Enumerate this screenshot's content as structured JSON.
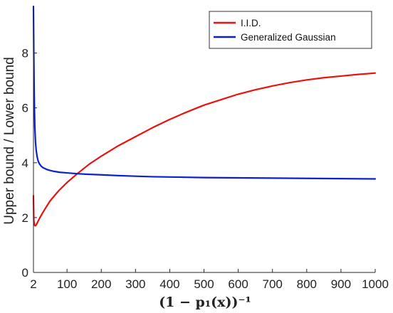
{
  "chart_data": {
    "type": "line",
    "xlabel": "(1 − p₁(x))⁻¹",
    "ylabel": "Upper bound / Lower bound",
    "xlim": [
      2,
      1000
    ],
    "ylim": [
      0,
      9.7
    ],
    "x_ticks": [
      2,
      100,
      200,
      300,
      400,
      500,
      600,
      700,
      800,
      900,
      1000
    ],
    "x_tick_labels": [
      "2",
      "100",
      "200",
      "300",
      "400",
      "500",
      "600",
      "700",
      "800",
      "900",
      "1000"
    ],
    "y_ticks": [
      0,
      2,
      4,
      6,
      8
    ],
    "y_tick_labels": [
      "0",
      "2",
      "4",
      "6",
      "8"
    ],
    "grid": false,
    "legend_position": "top-right",
    "series": [
      {
        "name": "I.I.D.",
        "color": "#e8120f",
        "x": [
          2,
          3,
          5,
          8,
          12,
          16,
          20,
          30,
          50,
          75,
          100,
          130,
          165,
          200,
          250,
          300,
          350,
          400,
          450,
          500,
          550,
          600,
          650,
          700,
          750,
          800,
          850,
          900,
          950,
          1000
        ],
        "y": [
          2.8,
          1.9,
          1.72,
          1.7,
          1.78,
          1.88,
          1.98,
          2.2,
          2.6,
          2.97,
          3.28,
          3.6,
          3.95,
          4.24,
          4.62,
          4.95,
          5.28,
          5.58,
          5.85,
          6.1,
          6.3,
          6.5,
          6.66,
          6.8,
          6.92,
          7.02,
          7.1,
          7.16,
          7.22,
          7.27
        ]
      },
      {
        "name": "Generalized Gaussian",
        "color": "#0c1fd0",
        "x": [
          2,
          3,
          4,
          5,
          6,
          8,
          10,
          13,
          16,
          20,
          25,
          30,
          40,
          50,
          60,
          80,
          100,
          130,
          160,
          200,
          250,
          300,
          350,
          400,
          500,
          600,
          700,
          800,
          900,
          1000
        ],
        "y": [
          9.7,
          8.0,
          6.7,
          5.9,
          5.3,
          4.75,
          4.45,
          4.2,
          4.05,
          3.95,
          3.87,
          3.82,
          3.76,
          3.72,
          3.69,
          3.65,
          3.63,
          3.6,
          3.58,
          3.56,
          3.53,
          3.51,
          3.49,
          3.48,
          3.46,
          3.45,
          3.44,
          3.43,
          3.42,
          3.41
        ]
      }
    ]
  }
}
